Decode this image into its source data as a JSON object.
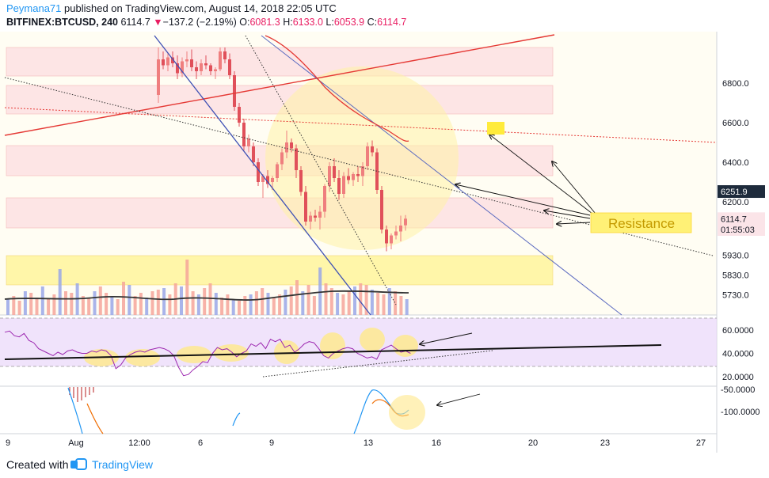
{
  "header": {
    "author": "Peymana71",
    "published_text": "published on TradingView.com, August 14, 2018 22:05 UTC",
    "symbol": "BITFINEX:BTCUSD, 240",
    "last": "6114.7",
    "change_arrow": "▼",
    "change": "−137.2 (−2.19%)",
    "o_label": "O:",
    "o": "6081.3",
    "h_label": "H:",
    "h": "6133.0",
    "l_label": "L:",
    "l": "6053.9",
    "c_label": "C:",
    "c": "6114.7"
  },
  "footer": {
    "created_with": "Created with",
    "brand": "TradingView"
  },
  "annotation": {
    "resistance_label": "Resistance"
  },
  "colors": {
    "up": "#ef7e7e",
    "down": "#e0505a",
    "accent": "#2196f3",
    "rsi_line": "#9c27b0",
    "yellow_zone": "#fff59d",
    "red_zone": "#fde5e5"
  },
  "chart_data": {
    "type": "candlestick",
    "timeframe": "240",
    "x_tick_labels": [
      "9",
      "Aug",
      "12:00",
      "6",
      "9",
      "13",
      "16",
      "20",
      "23",
      "27"
    ],
    "price_axis": {
      "ticks": [
        6800,
        6600,
        6400,
        6200,
        5930,
        5830,
        5730
      ],
      "tick_labels": [
        "6800.0",
        "6600.0",
        "6400.0",
        "6200.0",
        "5930.0",
        "5830.0",
        "5730.0"
      ],
      "ylim": [
        5680,
        6980
      ],
      "badges": [
        {
          "label": "6251.9",
          "value": 6251.9,
          "style": "dark"
        },
        {
          "label": "6114.7",
          "value": 6114.7,
          "style": "pink"
        },
        {
          "label": "01:55:03",
          "value": 6060,
          "style": "pink"
        }
      ]
    },
    "candles": [
      [
        6740,
        6980,
        6700,
        6920
      ],
      [
        6920,
        6960,
        6870,
        6890
      ],
      [
        6890,
        6950,
        6860,
        6930
      ],
      [
        6930,
        6960,
        6880,
        6900
      ],
      [
        6900,
        6940,
        6820,
        6850
      ],
      [
        6850,
        6930,
        6830,
        6910
      ],
      [
        6910,
        6960,
        6880,
        6920
      ],
      [
        6920,
        6970,
        6860,
        6880
      ],
      [
        6880,
        6910,
        6820,
        6860
      ],
      [
        6860,
        6920,
        6840,
        6900
      ],
      [
        6900,
        6940,
        6870,
        6890
      ],
      [
        6890,
        6900,
        6840,
        6860
      ],
      [
        6860,
        6880,
        6820,
        6870
      ],
      [
        6870,
        6980,
        6860,
        6960
      ],
      [
        6960,
        6980,
        6900,
        6920
      ],
      [
        6920,
        6950,
        6820,
        6840
      ],
      [
        6840,
        6860,
        6660,
        6680
      ],
      [
        6680,
        6700,
        6580,
        6600
      ],
      [
        6600,
        6620,
        6460,
        6480
      ],
      [
        6480,
        6540,
        6450,
        6520
      ],
      [
        6480,
        6500,
        6380,
        6400
      ],
      [
        6400,
        6420,
        6280,
        6300
      ],
      [
        6300,
        6340,
        6220,
        6330
      ],
      [
        6330,
        6360,
        6270,
        6290
      ],
      [
        6300,
        6330,
        6260,
        6320
      ],
      [
        6320,
        6400,
        6300,
        6390
      ],
      [
        6390,
        6470,
        6360,
        6450
      ],
      [
        6450,
        6560,
        6420,
        6500
      ],
      [
        6500,
        6520,
        6450,
        6470
      ],
      [
        6470,
        6490,
        6320,
        6360
      ],
      [
        6360,
        6380,
        6230,
        6250
      ],
      [
        6250,
        6280,
        6080,
        6100
      ],
      [
        6100,
        6150,
        6060,
        6130
      ],
      [
        6130,
        6160,
        6100,
        6120
      ],
      [
        6120,
        6180,
        6060,
        6150
      ],
      [
        6150,
        6290,
        6120,
        6280
      ],
      [
        6280,
        6400,
        6250,
        6380
      ],
      [
        6380,
        6420,
        6300,
        6320
      ],
      [
        6320,
        6360,
        6210,
        6240
      ],
      [
        6240,
        6350,
        6220,
        6330
      ],
      [
        6330,
        6370,
        6290,
        6310
      ],
      [
        6310,
        6350,
        6280,
        6340
      ],
      [
        6340,
        6380,
        6300,
        6330
      ],
      [
        6330,
        6400,
        6280,
        6380
      ],
      [
        6380,
        6500,
        6360,
        6480
      ],
      [
        6480,
        6510,
        6430,
        6450
      ],
      [
        6450,
        6470,
        6240,
        6260
      ],
      [
        6260,
        6280,
        6040,
        6060
      ],
      [
        6060,
        6080,
        5950,
        5990
      ],
      [
        5990,
        6040,
        5960,
        6030
      ],
      [
        6030,
        6080,
        6010,
        6050
      ],
      [
        6050,
        6130,
        6000,
        6080
      ],
      [
        6081.3,
        6133.0,
        6053.9,
        6114.7
      ]
    ],
    "rsi": {
      "ticks": [
        60,
        40,
        20
      ],
      "tick_labels": [
        "60.0000",
        "40.0000",
        "20.0000"
      ],
      "ylim": [
        12,
        70
      ],
      "bands": [
        30,
        70
      ],
      "values": [
        58,
        59,
        55,
        54,
        57,
        51,
        49,
        44,
        42,
        40,
        38,
        41,
        39,
        42,
        43,
        41,
        40,
        40,
        42,
        41,
        43,
        42,
        38,
        27,
        30,
        36,
        39,
        41,
        42,
        41,
        43,
        44,
        45,
        44,
        42,
        38,
        28,
        21,
        22,
        26,
        29,
        33,
        32,
        40,
        45,
        43,
        44,
        41,
        37,
        40,
        42,
        48,
        46,
        49,
        44,
        52,
        50,
        52,
        45,
        47,
        41,
        44,
        48,
        50,
        49,
        44,
        38,
        36,
        40,
        42,
        44,
        45,
        44,
        40,
        38,
        36,
        37,
        35,
        43,
        45,
        47,
        44,
        41,
        42,
        40
      ]
    },
    "macd": {
      "ticks": [
        -50,
        -100
      ],
      "tick_labels": [
        "-50.0000",
        "-100.0000"
      ],
      "ylim": [
        -150,
        -45
      ]
    },
    "annotations": [
      "Resistance"
    ]
  }
}
